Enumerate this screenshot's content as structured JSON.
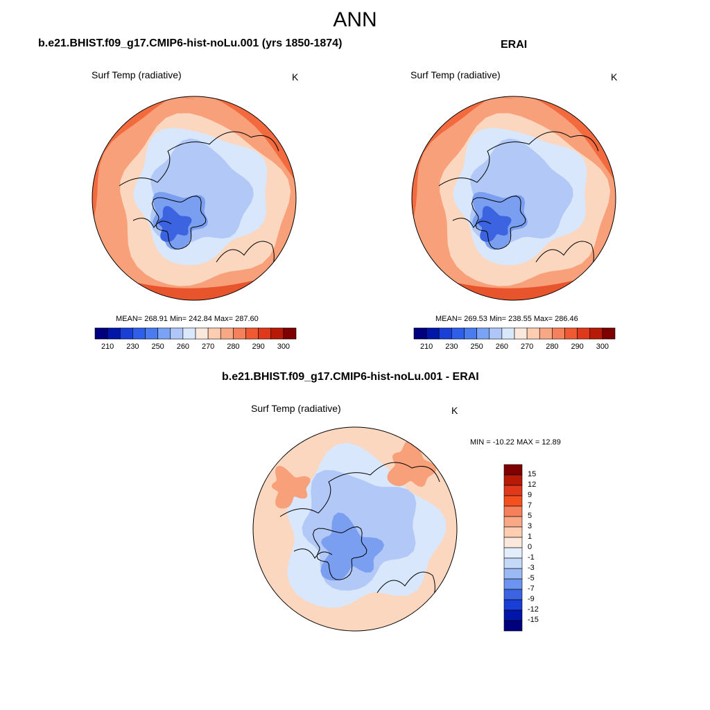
{
  "figure": {
    "title": "ANN"
  },
  "panels": [
    {
      "title": "b.e21.BHIST.f09_g17.CMIP6-hist-noLu.001 (yrs 1850-1874)",
      "field": "Surf Temp (radiative)",
      "units": "K",
      "stats": "MEAN= 268.91  Min= 242.84  Max= 287.60",
      "colorbar": {
        "ticks": [
          "210",
          "230",
          "250",
          "260",
          "270",
          "280",
          "290",
          "300"
        ],
        "colors": [
          "#00007f",
          "#0016a8",
          "#1a3fd6",
          "#2f5fe8",
          "#4a7cf0",
          "#7aa2f5",
          "#aec7f8",
          "#d9e8fb",
          "#fbe8dc",
          "#fccdb1",
          "#f9a886",
          "#f4805c",
          "#ef5a33",
          "#e0381a",
          "#b81a08",
          "#7f0000"
        ]
      },
      "map": {
        "colors": [
          "#f26a3e",
          "#f7a07a",
          "#fbd7c0",
          "#d8e7fb",
          "#b2c9f7",
          "#7b9ff0",
          "#3d64e0"
        ]
      }
    },
    {
      "title": "ERAI",
      "field": "Surf Temp (radiative)",
      "units": "K",
      "stats": "MEAN= 269.53  Min= 238.55  Max= 286.46",
      "colorbar": {
        "ticks": [
          "210",
          "230",
          "250",
          "260",
          "270",
          "280",
          "290",
          "300"
        ],
        "colors": [
          "#00007f",
          "#0016a8",
          "#1a3fd6",
          "#2f5fe8",
          "#4a7cf0",
          "#7aa2f5",
          "#aec7f8",
          "#d9e8fb",
          "#fbe8dc",
          "#fccdb1",
          "#f9a886",
          "#f4805c",
          "#ef5a33",
          "#e0381a",
          "#b81a08",
          "#7f0000"
        ]
      },
      "map": {
        "colors": [
          "#f26a3e",
          "#f7a07a",
          "#fbd7c0",
          "#d8e7fb",
          "#b2c9f7",
          "#7b9ff0",
          "#3d64e0"
        ]
      }
    },
    {
      "title": "b.e21.BHIST.f09_g17.CMIP6-hist-noLu.001 - ERAI",
      "field": "Surf Temp (radiative)",
      "units": "K",
      "stats": "MIN = -10.22 MAX =  12.89",
      "colorbar": {
        "ticks": [
          "15",
          "12",
          "9",
          "7",
          "5",
          "3",
          "1",
          "0",
          "-1",
          "-3",
          "-5",
          "-7",
          "-9",
          "-12",
          "-15"
        ],
        "colors": [
          "#7f0000",
          "#b81a08",
          "#e0381a",
          "#f4501f",
          "#f4805c",
          "#f9a886",
          "#fccdb1",
          "#fbe8dc",
          "#e3eefc",
          "#c4d8f8",
          "#9bbaf4",
          "#6d94ee",
          "#3d64e0",
          "#1a3fd6",
          "#0016a8",
          "#00007f"
        ]
      },
      "map": {
        "colors": [
          "#fbd7c0",
          "#d8e7fb",
          "#b2c9f7",
          "#7b9ff0",
          "#f7a07a"
        ]
      }
    }
  ]
}
